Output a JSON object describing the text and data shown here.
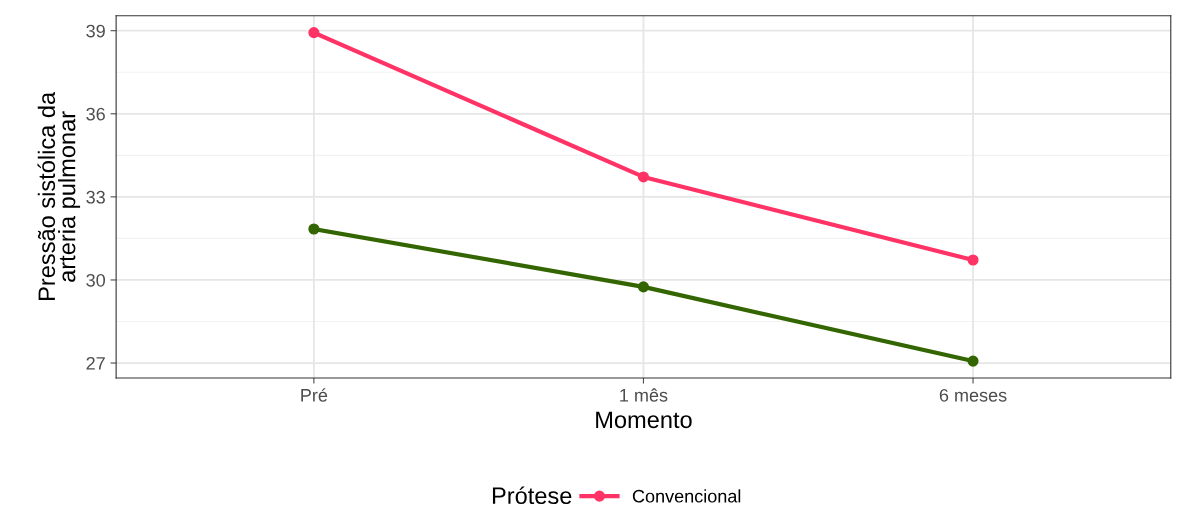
{
  "chart_data": {
    "type": "line",
    "xlabel": "Momento",
    "ylabel": "Pressão sistólica da\narteria pulmonar",
    "legend_title": "Prótese",
    "categories": [
      "Pré",
      "1 mês",
      "6 meses"
    ],
    "series": [
      {
        "name": "Convencional",
        "color": "#ff3366",
        "values": [
          38.93,
          33.72,
          30.72
        ]
      },
      {
        "color": "#336600",
        "values": [
          31.84,
          29.75,
          27.07
        ]
      }
    ],
    "ylim": [
      26.46,
      39.54
    ],
    "yticks": [
      27,
      30,
      33,
      36,
      39
    ],
    "grid": true,
    "legend": "bottom",
    "marker": "circle",
    "line_style": "solid"
  }
}
